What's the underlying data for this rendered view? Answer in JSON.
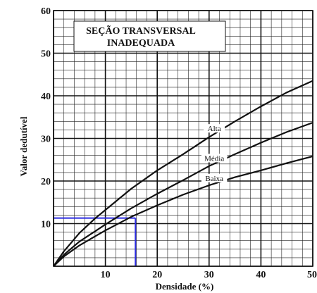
{
  "chart_data": {
    "type": "line",
    "title_lines": [
      "SEÇÃO TRANSVERSAL",
      "INADEQUADA"
    ],
    "xlabel": "Densidade (%)",
    "ylabel": "Valor dedutível",
    "xlim": [
      0,
      50
    ],
    "ylim": [
      0,
      60
    ],
    "xticks": [
      "10",
      "20",
      "30",
      "40",
      "50"
    ],
    "yticks": [
      "10",
      "20",
      "30",
      "40",
      "50",
      "60"
    ],
    "grid": true,
    "series": [
      {
        "name": "Alta",
        "x": [
          0,
          2,
          5,
          8,
          10,
          15,
          20,
          25,
          30,
          35,
          40,
          45,
          50
        ],
        "y": [
          0,
          3.5,
          7.8,
          11.2,
          13.2,
          18.2,
          22.5,
          26.3,
          30.3,
          34.0,
          37.5,
          40.8,
          43.5
        ]
      },
      {
        "name": "Média",
        "x": [
          0,
          2,
          5,
          8,
          10,
          15,
          20,
          25,
          30,
          35,
          40,
          45,
          50
        ],
        "y": [
          0,
          2.7,
          5.8,
          8.2,
          9.8,
          13.6,
          17.0,
          20.2,
          23.5,
          26.3,
          29.0,
          31.5,
          33.7
        ]
      },
      {
        "name": "Baixa",
        "x": [
          0,
          2,
          5,
          8,
          10,
          15,
          20,
          25,
          30,
          35,
          40,
          45,
          50
        ],
        "y": [
          0,
          2.3,
          4.9,
          7.0,
          8.4,
          11.6,
          14.3,
          16.8,
          19.0,
          20.9,
          22.5,
          24.2,
          25.8
        ]
      }
    ],
    "reference_line": {
      "x": 15.8,
      "y": 11.3,
      "color": "#2a2ae0"
    },
    "line_color": "#111111"
  }
}
